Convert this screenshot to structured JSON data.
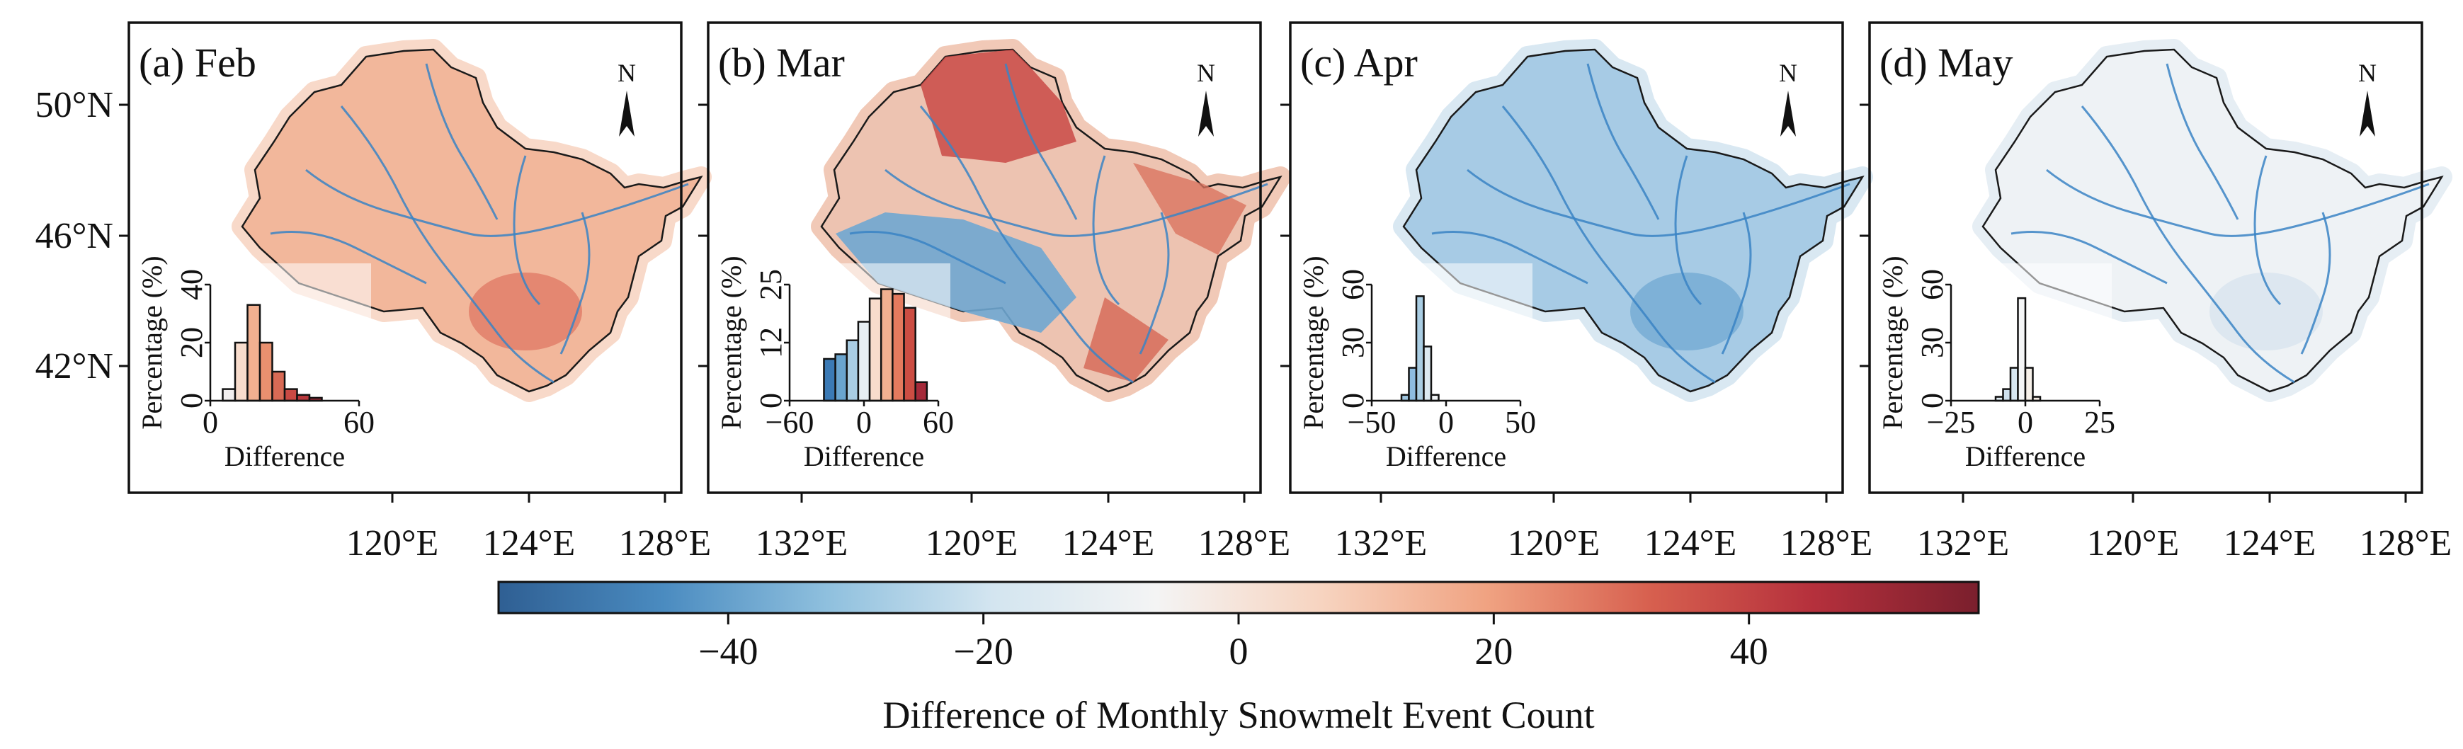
{
  "chart_data": {
    "type": "figure-with-maps-and-histograms",
    "latitude_ticks": [
      "50°N",
      "46°N",
      "42°N"
    ],
    "longitude_ticks": [
      "120°E",
      "124°E",
      "128°E",
      "132°E"
    ],
    "north_label": "N",
    "panels": [
      {
        "title": "(a) Feb",
        "map_tone": "red",
        "show_lat_ticks": true,
        "histogram": {
          "ylabel": "Percentage (%)",
          "xlabel": "Difference",
          "yticks": [
            "0",
            "20",
            "40"
          ],
          "ymax": 40,
          "xticks": [
            "0",
            "60"
          ],
          "xrange": [
            -12,
            60
          ],
          "bin_width": 6,
          "bins": [
            {
              "x0": -6,
              "value": 4,
              "color": "#f2efef"
            },
            {
              "x0": 0,
              "value": 20,
              "color": "#f8dccc"
            },
            {
              "x0": 6,
              "value": 33,
              "color": "#f2b090"
            },
            {
              "x0": 12,
              "value": 20,
              "color": "#e9906f"
            },
            {
              "x0": 18,
              "value": 10,
              "color": "#d86a55"
            },
            {
              "x0": 24,
              "value": 4,
              "color": "#c94a44"
            },
            {
              "x0": 30,
              "value": 2,
              "color": "#b8383c"
            },
            {
              "x0": 36,
              "value": 1,
              "color": "#a72d38"
            }
          ]
        }
      },
      {
        "title": "(b) Mar",
        "map_tone": "mixed",
        "show_lat_ticks": false,
        "histogram": {
          "ylabel": "Percentage (%)",
          "xlabel": "Difference",
          "yticks": [
            "0",
            "12",
            "25"
          ],
          "ymax": 25,
          "xticks": [
            "−60",
            "0",
            "60"
          ],
          "xrange": [
            -70,
            60
          ],
          "bin_width": 10,
          "bins": [
            {
              "x0": -40,
              "value": 9,
              "color": "#3b7ab5"
            },
            {
              "x0": -30,
              "value": 10,
              "color": "#6aa5cf"
            },
            {
              "x0": -20,
              "value": 13,
              "color": "#a9cde3"
            },
            {
              "x0": -10,
              "value": 17,
              "color": "#e6eef3"
            },
            {
              "x0": 0,
              "value": 22,
              "color": "#f8dccc"
            },
            {
              "x0": 10,
              "value": 24,
              "color": "#f2b090"
            },
            {
              "x0": 20,
              "value": 23,
              "color": "#e57a5e"
            },
            {
              "x0": 30,
              "value": 20,
              "color": "#cc4d43"
            },
            {
              "x0": 40,
              "value": 4,
              "color": "#a52a3a"
            }
          ]
        }
      },
      {
        "title": "(c) Apr",
        "map_tone": "blue",
        "show_lat_ticks": false,
        "histogram": {
          "ylabel": "Percentage (%)",
          "xlabel": "Difference",
          "yticks": [
            "0",
            "30",
            "60"
          ],
          "ymax": 60,
          "xticks": [
            "−50",
            "0",
            "50"
          ],
          "xrange": [
            -50,
            50
          ],
          "bin_width": 5,
          "bins": [
            {
              "x0": -30,
              "value": 3,
              "color": "#9fc6e0"
            },
            {
              "x0": -25,
              "value": 17,
              "color": "#8ebce0"
            },
            {
              "x0": -20,
              "value": 54,
              "color": "#a9cde3"
            },
            {
              "x0": -15,
              "value": 28,
              "color": "#dce9f1"
            },
            {
              "x0": -10,
              "value": 3,
              "color": "#f0f3f5"
            }
          ]
        }
      },
      {
        "title": "(d) May",
        "map_tone": "light",
        "show_lat_ticks": false,
        "histogram": {
          "ylabel": "Percentage (%)",
          "xlabel": "Difference",
          "yticks": [
            "0",
            "30",
            "60"
          ],
          "ymax": 60,
          "xticks": [
            "−25",
            "0",
            "25"
          ],
          "xrange": [
            -25,
            25
          ],
          "bin_width": 2.5,
          "bins": [
            {
              "x0": -10,
              "value": 2,
              "color": "#e1ecf3"
            },
            {
              "x0": -7.5,
              "value": 6,
              "color": "#cfe1ee"
            },
            {
              "x0": -5,
              "value": 17,
              "color": "#d8e7f1"
            },
            {
              "x0": -2.5,
              "value": 53,
              "color": "#f5f6f7"
            },
            {
              "x0": 0,
              "value": 17,
              "color": "#f7f1ea"
            },
            {
              "x0": 2.5,
              "value": 2,
              "color": "#f7ece4"
            }
          ]
        }
      }
    ],
    "colorbar": {
      "label": "Difference of Monthly Snowmelt Event Count",
      "min": -58,
      "max": 58,
      "ticks": [
        {
          "value": -40,
          "label": "−40"
        },
        {
          "value": -20,
          "label": "−20"
        },
        {
          "value": 0,
          "label": "0"
        },
        {
          "value": 20,
          "label": "20"
        },
        {
          "value": 40,
          "label": "40"
        }
      ],
      "colors": [
        "#2f5f93",
        "#4a8bc0",
        "#8fc0de",
        "#d3e5f0",
        "#f4f4f4",
        "#f7d4c0",
        "#f0a382",
        "#d7604f",
        "#b5303c",
        "#7a1f2d"
      ]
    }
  }
}
